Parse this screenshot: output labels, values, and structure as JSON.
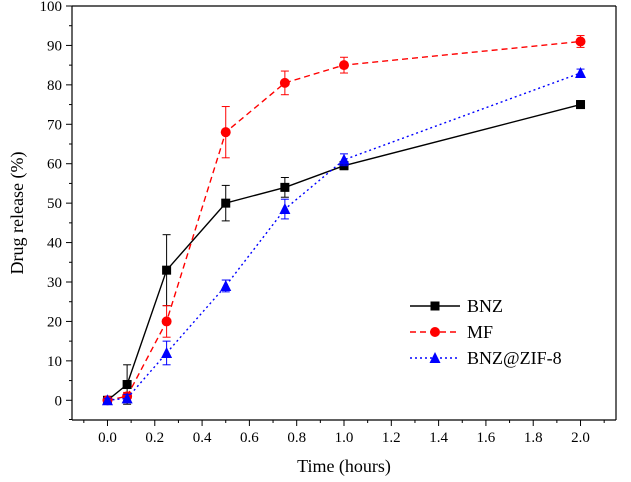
{
  "chart_data": {
    "type": "line",
    "title": "",
    "xlabel": "Time (hours)",
    "ylabel": "Drug release (%)",
    "xlim": [
      -0.15,
      2.15
    ],
    "ylim": [
      -5,
      100
    ],
    "x_ticks": [
      0.0,
      0.2,
      0.4,
      0.6,
      0.8,
      1.0,
      1.2,
      1.4,
      1.6,
      1.8,
      2.0
    ],
    "x_tick_labels": [
      "0.0",
      "0.2",
      "0.4",
      "0.6",
      "0.8",
      "1.0",
      "1.2",
      "1.4",
      "1.6",
      "1.8",
      "2.0"
    ],
    "y_ticks": [
      0,
      10,
      20,
      30,
      40,
      50,
      60,
      70,
      80,
      90,
      100
    ],
    "y_tick_labels": [
      "0",
      "10",
      "20",
      "30",
      "40",
      "50",
      "60",
      "70",
      "80",
      "90",
      "100"
    ],
    "legend_position": "bottom-right",
    "series": [
      {
        "name": "BNZ",
        "color": "#000000",
        "line_style": "solid",
        "marker": "square",
        "x": [
          0,
          0.083,
          0.25,
          0.5,
          0.75,
          1.0,
          2.0
        ],
        "values": [
          0,
          4,
          33,
          50,
          54,
          59.5,
          75
        ],
        "errors": [
          0.5,
          5,
          9,
          4.5,
          2.5,
          1,
          1
        ]
      },
      {
        "name": "MF",
        "color": "#ff0000",
        "line_style": "dashed",
        "marker": "circle",
        "x": [
          0,
          0.083,
          0.25,
          0.5,
          0.75,
          1.0,
          2.0
        ],
        "values": [
          0,
          1,
          20,
          68,
          80.5,
          85,
          91
        ],
        "errors": [
          0.5,
          1,
          4,
          6.5,
          3,
          2,
          1.5
        ]
      },
      {
        "name": "BNZ@ZIF-8",
        "color": "#0000ff",
        "line_style": "dotted",
        "marker": "triangle",
        "x": [
          0,
          0.083,
          0.25,
          0.5,
          0.75,
          1.0,
          2.0
        ],
        "values": [
          0,
          0.5,
          12,
          29,
          48.5,
          61,
          83
        ],
        "errors": [
          0.5,
          1,
          3,
          1.5,
          2.5,
          1.5,
          1
        ]
      }
    ]
  }
}
